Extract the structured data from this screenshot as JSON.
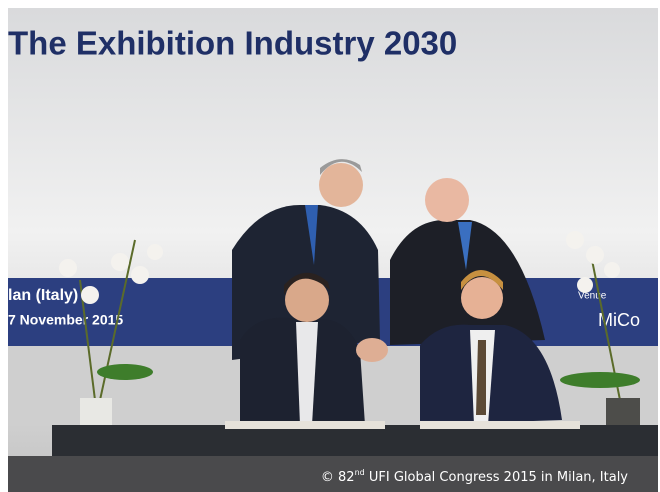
{
  "banner": {
    "title": "The Exhibition Industry 2030",
    "city": "lan (Italy)",
    "date": "7 November 2015",
    "venue_label": "Venue",
    "venue_name": "MiCo"
  },
  "caption": {
    "prefix": "© 82",
    "superscript": "nd",
    "suffix": " UFI Global Congress 2015 in Milan, Italy"
  }
}
